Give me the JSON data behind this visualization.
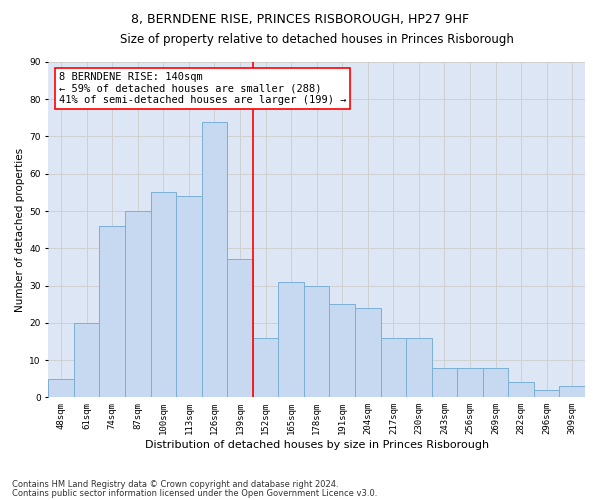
{
  "title": "8, BERNDENE RISE, PRINCES RISBOROUGH, HP27 9HF",
  "subtitle": "Size of property relative to detached houses in Princes Risborough",
  "xlabel": "Distribution of detached houses by size in Princes Risborough",
  "ylabel": "Number of detached properties",
  "categories": [
    "48sqm",
    "61sqm",
    "74sqm",
    "87sqm",
    "100sqm",
    "113sqm",
    "126sqm",
    "139sqm",
    "152sqm",
    "165sqm",
    "178sqm",
    "191sqm",
    "204sqm",
    "217sqm",
    "230sqm",
    "243sqm",
    "256sqm",
    "269sqm",
    "282sqm",
    "296sqm",
    "309sqm"
  ],
  "values": [
    5,
    20,
    46,
    50,
    55,
    54,
    74,
    37,
    16,
    31,
    30,
    25,
    24,
    16,
    16,
    8,
    8,
    8,
    4,
    2,
    3
  ],
  "bar_color": "#c6d9f1",
  "bar_edge_color": "#7bafd4",
  "vline_color": "red",
  "annotation_text": "8 BERNDENE RISE: 140sqm\n← 59% of detached houses are smaller (288)\n41% of semi-detached houses are larger (199) →",
  "annotation_box_color": "white",
  "annotation_box_edge_color": "red",
  "ylim": [
    0,
    90
  ],
  "yticks": [
    0,
    10,
    20,
    30,
    40,
    50,
    60,
    70,
    80,
    90
  ],
  "grid_color": "#cccccc",
  "bg_color": "#dce6f5",
  "footnote1": "Contains HM Land Registry data © Crown copyright and database right 2024.",
  "footnote2": "Contains public sector information licensed under the Open Government Licence v3.0.",
  "title_fontsize": 9,
  "subtitle_fontsize": 8.5,
  "xlabel_fontsize": 8,
  "ylabel_fontsize": 7.5,
  "tick_fontsize": 6.5,
  "annotation_fontsize": 7.5,
  "footnote_fontsize": 6
}
